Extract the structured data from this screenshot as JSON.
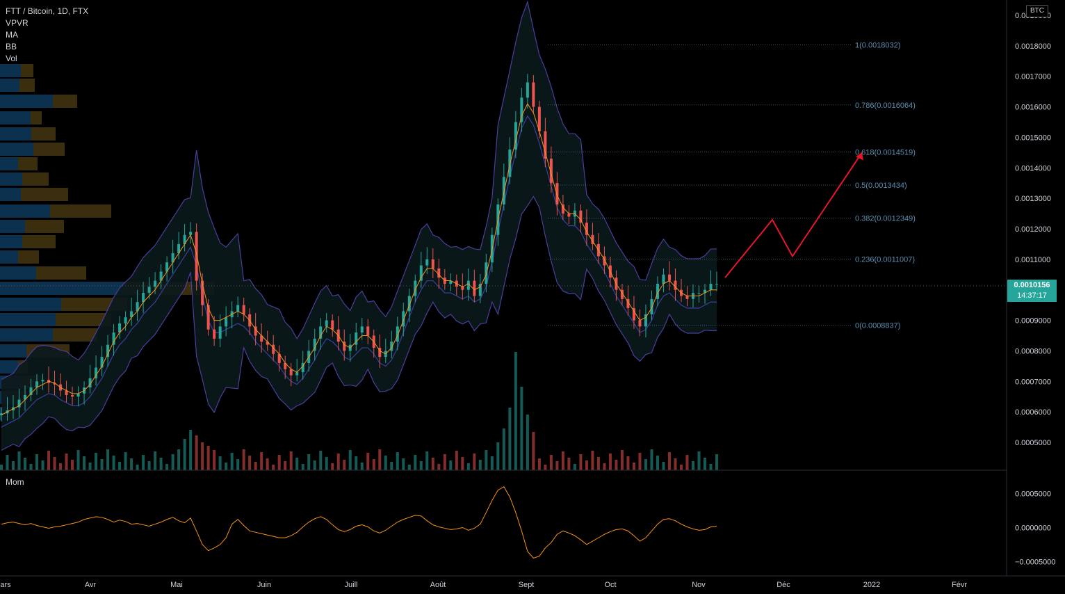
{
  "header": {
    "symbol_line": "FTT / Bitcoin, 1D, FTX",
    "indicators": [
      "VPVR",
      "MA",
      "BB",
      "Vol"
    ],
    "currency_badge": "BTC"
  },
  "momentum_pane": {
    "label": "Mom"
  },
  "last_price": {
    "value": "0.0010156",
    "countdown": "14:37:17",
    "color": "#26a69a"
  },
  "colors": {
    "up": "#26a69a",
    "down": "#ef5350",
    "ma": "#f7931a",
    "bb": "#4b3f9e",
    "mom": "#f7931a",
    "projection": "#e8162b",
    "fib": "#5b8fb0"
  },
  "chart_data": {
    "type": "candlestick",
    "title": "FTT / Bitcoin, 1D, FTX",
    "x_labels": [
      "ars",
      "Avr",
      "Mai",
      "Juin",
      "Juill",
      "Août",
      "Sept",
      "Oct",
      "Nov",
      "Déc",
      "2022",
      "Févr"
    ],
    "y_labels": [
      "0.0019000",
      "0.0018000",
      "0.0017000",
      "0.0016000",
      "0.0015000",
      "0.0014000",
      "0.0013000",
      "0.0012000",
      "0.0011000",
      "0.0009000",
      "0.0008000",
      "0.0007000",
      "0.0006000",
      "0.0005000"
    ],
    "ylim": [
      0.00042,
      0.00191
    ],
    "close_series": [
      0.000595,
      0.000605,
      0.000615,
      0.00064,
      0.000655,
      0.00068,
      0.0007,
      0.000705,
      0.000695,
      0.00069,
      0.00067,
      0.000655,
      0.00065,
      0.00066,
      0.00068,
      0.00071,
      0.000745,
      0.00078,
      0.00082,
      0.00086,
      0.00089,
      0.00091,
      0.00093,
      0.00096,
      0.00099,
      0.00101,
      0.00103,
      0.00106,
      0.00109,
      0.00112,
      0.00115,
      0.00118,
      0.00119,
      0.00103,
      0.00095,
      0.00087,
      0.00084,
      0.00088,
      0.00091,
      0.00093,
      0.00095,
      0.00092,
      0.00088,
      0.00085,
      0.00083,
      0.00082,
      0.00079,
      0.00076,
      0.00074,
      0.00072,
      0.00073,
      0.00076,
      0.0008,
      0.00084,
      0.00088,
      0.0009,
      0.00087,
      0.00083,
      0.0008,
      0.00082,
      0.00086,
      0.00088,
      0.00085,
      0.00081,
      0.00078,
      0.0008,
      0.00083,
      0.00088,
      0.00093,
      0.00098,
      0.00103,
      0.00108,
      0.0011,
      0.00107,
      0.00104,
      0.00102,
      0.00103,
      0.00101,
      0.001,
      0.00103,
      0.00098,
      0.00102,
      0.00109,
      0.00118,
      0.00128,
      0.00137,
      0.00146,
      0.00155,
      0.00163,
      0.00168,
      0.0016,
      0.00152,
      0.00143,
      0.00135,
      0.00128,
      0.00125,
      0.00124,
      0.00126,
      0.00122,
      0.00118,
      0.00115,
      0.00111,
      0.00108,
      0.00104,
      0.001,
      0.00097,
      0.00094,
      0.0009,
      0.00088,
      0.00092,
      0.00097,
      0.00102,
      0.00105,
      0.00103,
      0.001,
      0.00098,
      0.00097,
      0.00099,
      0.00099,
      0.001,
      0.00102,
      0.00102
    ],
    "ma_series": [
      0.00059,
      0.0006,
      0.00061,
      0.00062,
      0.00064,
      0.00066,
      0.00068,
      0.00069,
      0.0007,
      0.000695,
      0.00068,
      0.00067,
      0.00066,
      0.00066,
      0.00067,
      0.00069,
      0.00072,
      0.00075,
      0.00079,
      0.00083,
      0.00086,
      0.00088,
      0.00091,
      0.00093,
      0.00096,
      0.00098,
      0.001,
      0.00103,
      0.00106,
      0.00109,
      0.00112,
      0.00115,
      0.00118,
      0.00112,
      0.00102,
      0.00094,
      0.0009,
      0.0009,
      0.00091,
      0.00092,
      0.00093,
      0.00092,
      0.0009,
      0.00087,
      0.00085,
      0.00083,
      0.00081,
      0.00079,
      0.00076,
      0.00074,
      0.00073,
      0.00075,
      0.00078,
      0.00081,
      0.00085,
      0.00088,
      0.00087,
      0.00085,
      0.00082,
      0.00081,
      0.00083,
      0.00085,
      0.00085,
      0.00083,
      0.0008,
      0.00079,
      0.00081,
      0.00085,
      0.0009,
      0.00095,
      0.001,
      0.00104,
      0.00107,
      0.00107,
      0.00105,
      0.00103,
      0.00103,
      0.00102,
      0.00101,
      0.00102,
      0.001,
      0.00101,
      0.00105,
      0.00113,
      0.00123,
      0.00132,
      0.00141,
      0.00149,
      0.00157,
      0.00161,
      0.00158,
      0.00152,
      0.00145,
      0.00138,
      0.00131,
      0.00127,
      0.00125,
      0.00125,
      0.00123,
      0.00119,
      0.00116,
      0.00113,
      0.0011,
      0.00106,
      0.00102,
      0.00099,
      0.00096,
      0.00093,
      0.0009,
      0.00091,
      0.00094,
      0.00099,
      0.00102,
      0.00103,
      0.00101,
      0.00099,
      0.00098,
      0.00098,
      0.00098,
      0.00099,
      0.001,
      0.001
    ],
    "fib_levels": [
      {
        "ratio": "1",
        "value": "0.0018032",
        "label": "1(0.0018032)"
      },
      {
        "ratio": "0.786",
        "value": "0.0016064",
        "label": "0.786(0.0016064)"
      },
      {
        "ratio": "0.618",
        "value": "0.0014519",
        "label": "0.618(0.0014519)"
      },
      {
        "ratio": "0.5",
        "value": "0.0013434",
        "label": "0.5(0.0013434)"
      },
      {
        "ratio": "0.382",
        "value": "0.0012349",
        "label": "0.382(0.0012349)"
      },
      {
        "ratio": "0.236",
        "value": "0.0011007",
        "label": "0.236(0.0011007)"
      },
      {
        "ratio": "0",
        "value": "0.0008837",
        "label": "0(0.0008837)"
      }
    ],
    "projection_path": [
      0.00104,
      0.00123,
      0.00111,
      0.00145
    ],
    "momentum": {
      "y_labels": [
        "0.0005000",
        "0.0000000",
        "−0.0005000"
      ],
      "ylim": [
        -0.00065,
        0.00068
      ],
      "values": [
        5e-05,
        7e-05,
        8e-05,
        6e-05,
        4e-05,
        6e-05,
        3e-05,
        1e-05,
        -1e-05,
        1e-05,
        2e-05,
        4e-05,
        6e-05,
        8e-05,
        0.00012,
        0.00014,
        0.00016,
        0.00015,
        0.00012,
        8e-05,
        0.00011,
        9e-05,
        5e-05,
        6e-05,
        4e-05,
        2e-05,
        5e-05,
        8e-05,
        0.00012,
        0.00015,
        0.0001,
        7e-05,
        0.00014,
        -5e-05,
        -0.00025,
        -0.00034,
        -0.0003,
        -0.00025,
        -0.00015,
        5e-05,
        0.00012,
        3e-05,
        -5e-05,
        -7e-05,
        -9e-05,
        -0.00011,
        -0.00013,
        -0.00015,
        -0.00015,
        -0.00012,
        -7e-05,
        1e-05,
        8e-05,
        0.00013,
        0.00016,
        0.00012,
        4e-05,
        -3e-05,
        -6e-05,
        -3e-05,
        2e-05,
        4e-05,
        1e-05,
        -5e-05,
        -8e-05,
        -4e-05,
        2e-05,
        8e-05,
        0.00012,
        0.00015,
        0.00018,
        0.00017,
        0.0001,
        4e-05,
        1e-05,
        -1e-05,
        -3e-05,
        -2e-05,
        0.0,
        -4e-05,
        -1e-05,
        5e-05,
        0.00022,
        0.0004,
        0.00055,
        0.0006,
        0.00045,
        0.00022,
        -5e-05,
        -0.00035,
        -0.00045,
        -0.00042,
        -0.0003,
        -0.00022,
        -0.0001,
        -5e-05,
        -8e-05,
        -0.00012,
        -0.00018,
        -0.00025,
        -0.0002,
        -0.00015,
        -0.0001,
        -6e-05,
        -3e-05,
        -2e-05,
        -5e-05,
        -0.00012,
        -0.0002,
        -0.00015,
        -5e-05,
        5e-05,
        0.00012,
        0.00013,
        0.0001,
        5e-05,
        1e-05,
        -2e-05,
        -4e-05,
        -3e-05,
        1e-05,
        2e-05
      ]
    }
  }
}
